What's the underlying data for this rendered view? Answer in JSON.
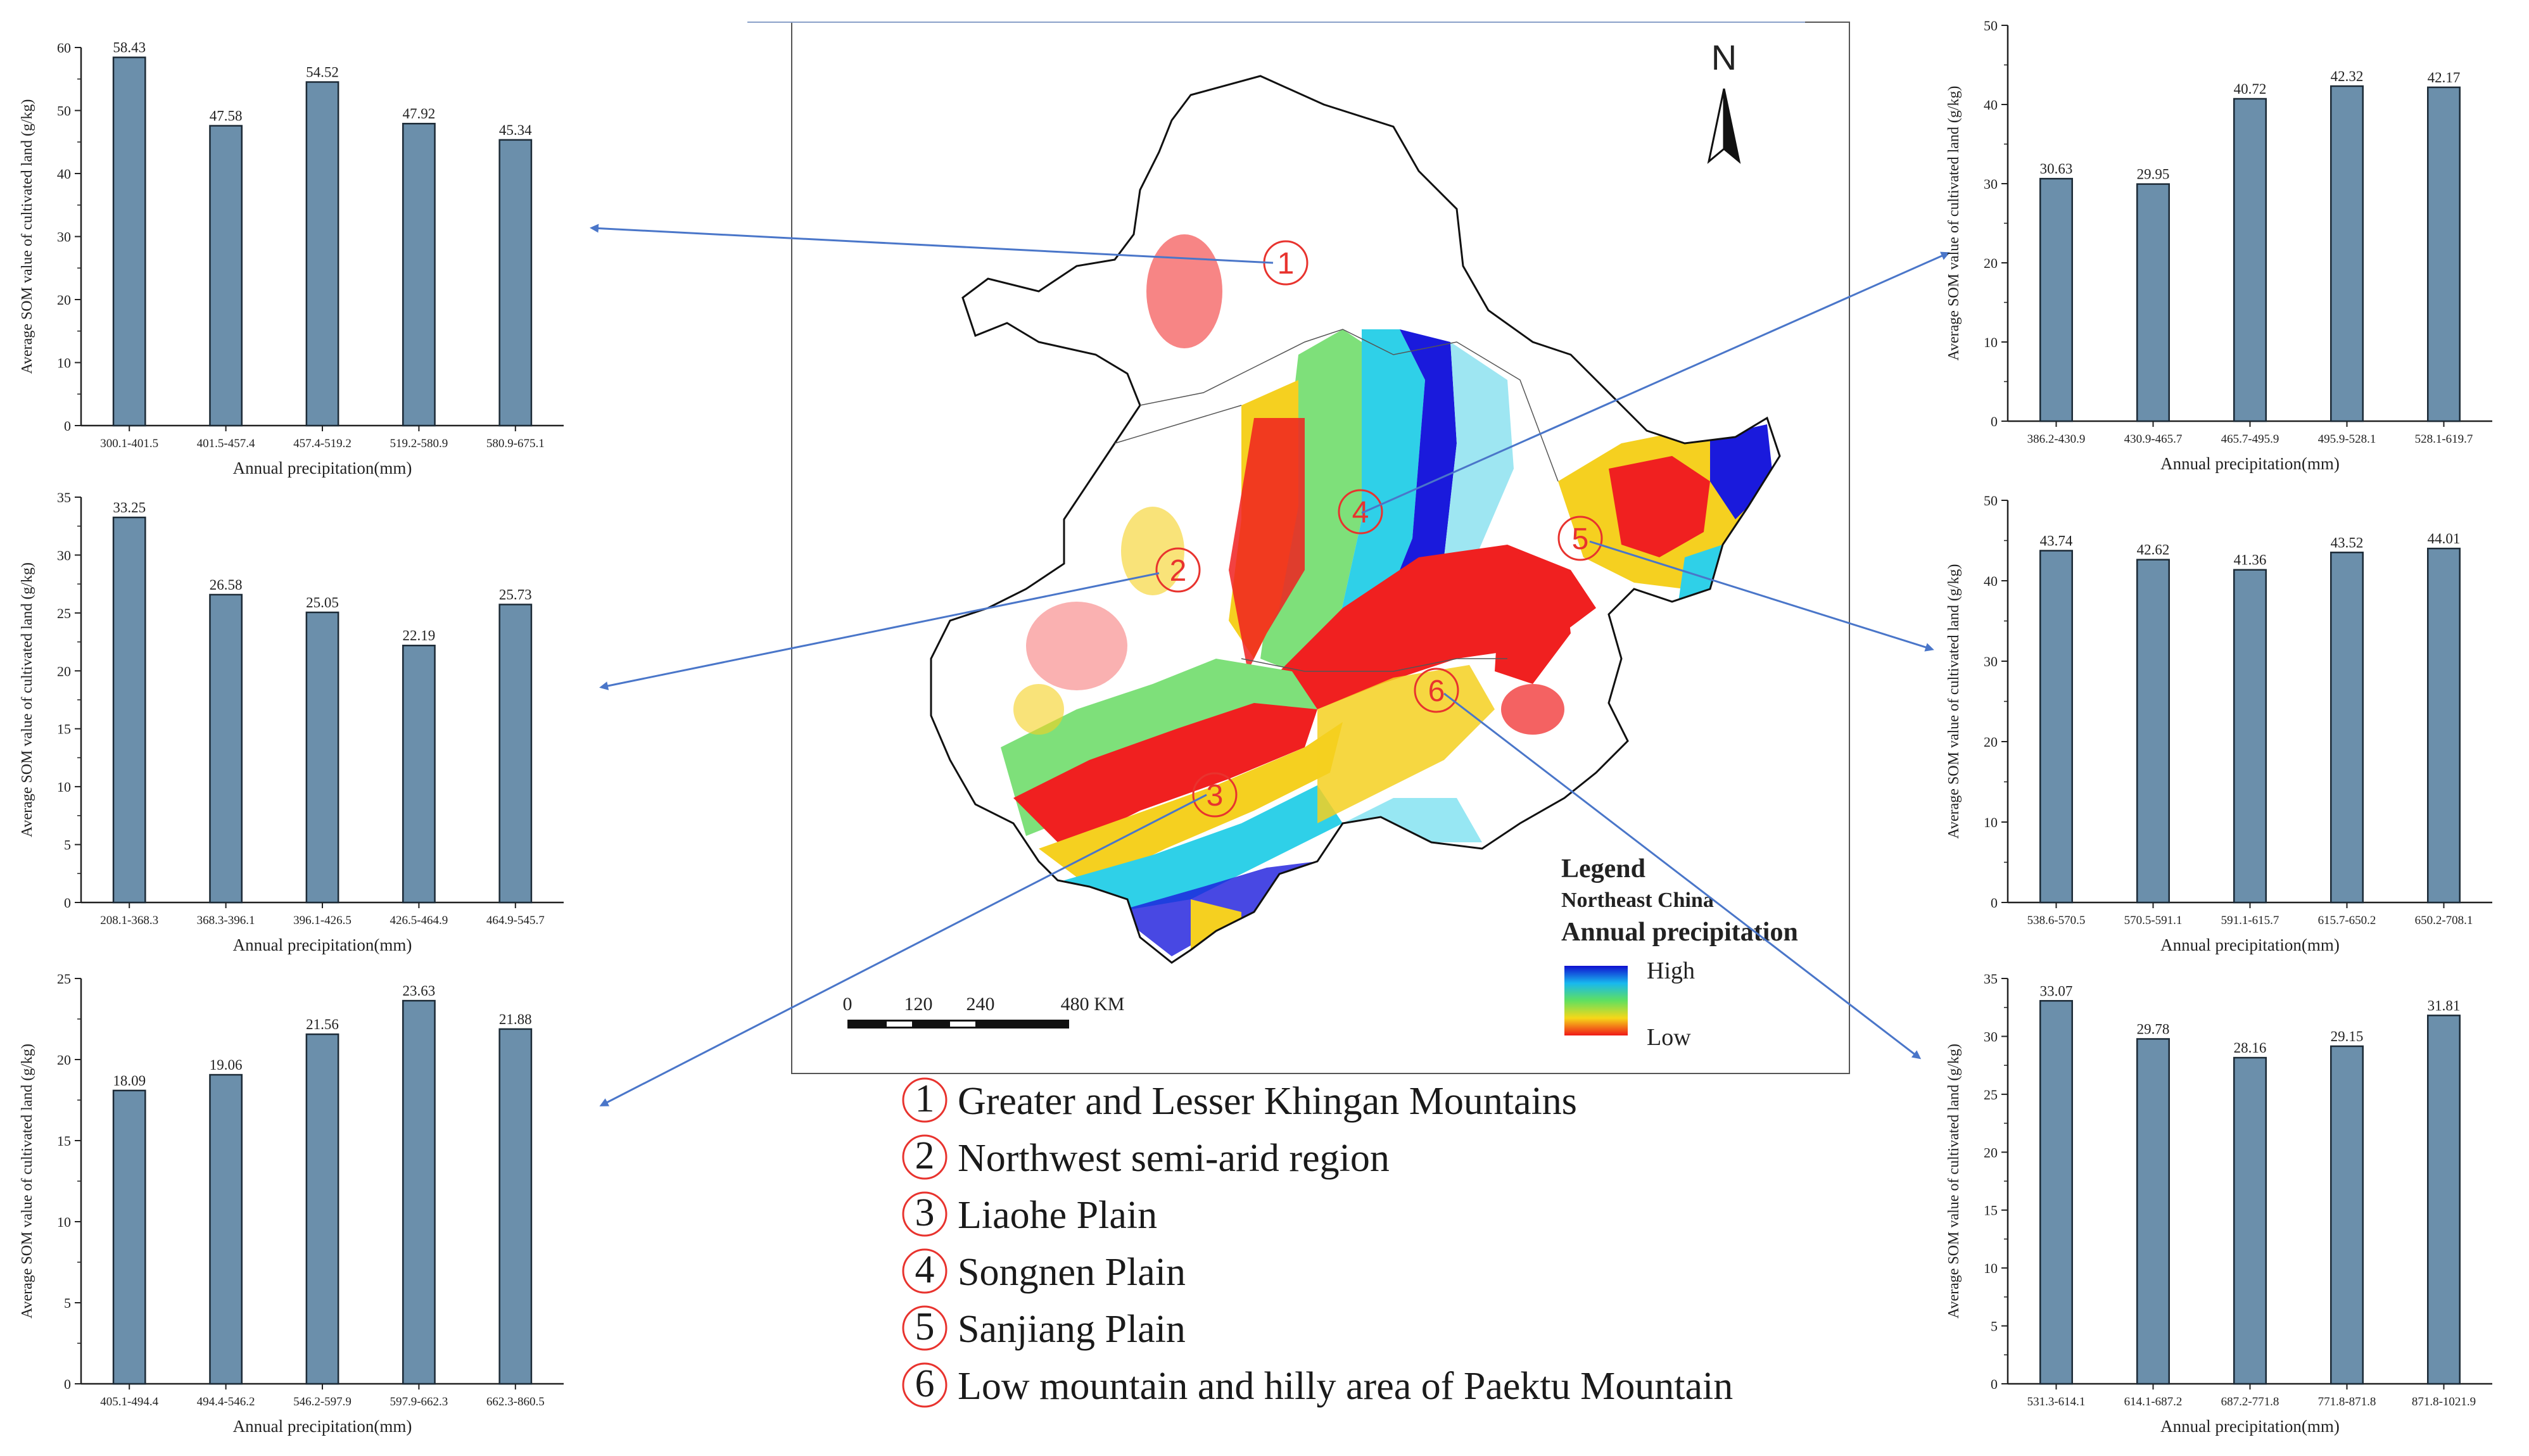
{
  "map": {
    "north_label": "N",
    "legend_title": "Legend",
    "legend_region": "Northeast China",
    "legend_variable": "Annual precipitation",
    "legend_high": "High",
    "legend_low": "Low",
    "scale_ticks": [
      "0",
      "120",
      "240",
      "480 KM"
    ],
    "region_markers": [
      "1",
      "2",
      "3",
      "4",
      "5",
      "6"
    ],
    "colors": {
      "high": "#1a1adc",
      "mid": "#2fd0e8",
      "green": "#7ee07a",
      "yellow": "#f5d020",
      "low": "#f02020",
      "boundary": "#111111",
      "arrow": "#4a76c9"
    }
  },
  "regions": [
    {
      "num": "1",
      "name": "Greater and Lesser Khingan Mountains"
    },
    {
      "num": "2",
      "name": "Northwest semi-arid region"
    },
    {
      "num": "3",
      "name": "Liaohe Plain"
    },
    {
      "num": "4",
      "name": "Songnen Plain"
    },
    {
      "num": "5",
      "name": "Sanjiang Plain"
    },
    {
      "num": "6",
      "name": "Low mountain and hilly area of Paektu Mountain"
    }
  ],
  "chart_data": [
    {
      "type": "bar",
      "region": "1",
      "ylabel": "Average SOM value of cultivated land (g/kg)",
      "xlabel": "Annual precipitation(mm)",
      "categories": [
        "300.1-401.5",
        "401.5-457.4",
        "457.4-519.2",
        "519.2-580.9",
        "580.9-675.1"
      ],
      "values": [
        58.43,
        47.58,
        54.52,
        47.92,
        45.34
      ],
      "value_labels": [
        "58.43",
        "47.58",
        "54.52",
        "47.92",
        "45.34"
      ],
      "ylim": [
        0,
        60
      ],
      "yticks": [
        "0",
        "10",
        "20",
        "30",
        "40",
        "50",
        "60"
      ],
      "bar_color": "#6b8fab"
    },
    {
      "type": "bar",
      "region": "2",
      "ylabel": "Average SOM value of cultivated land (g/kg)",
      "xlabel": "Annual precipitation(mm)",
      "categories": [
        "208.1-368.3",
        "368.3-396.1",
        "396.1-426.5",
        "426.5-464.9",
        "464.9-545.7"
      ],
      "values": [
        33.25,
        26.58,
        25.05,
        22.19,
        25.73
      ],
      "value_labels": [
        "33.25",
        "26.58",
        "25.05",
        "22.19",
        "25.73"
      ],
      "ylim": [
        0,
        35
      ],
      "yticks": [
        "0",
        "5",
        "10",
        "15",
        "20",
        "25",
        "30",
        "35"
      ],
      "bar_color": "#6b8fab"
    },
    {
      "type": "bar",
      "region": "3",
      "ylabel": "Average SOM value of cultivated land (g/kg)",
      "xlabel": "Annual precipitation(mm)",
      "categories": [
        "405.1-494.4",
        "494.4-546.2",
        "546.2-597.9",
        "597.9-662.3",
        "662.3-860.5"
      ],
      "values": [
        18.09,
        19.06,
        21.56,
        23.63,
        21.88
      ],
      "value_labels": [
        "18.09",
        "19.06",
        "21.56",
        "23.63",
        "21.88"
      ],
      "ylim": [
        0,
        25
      ],
      "yticks": [
        "0",
        "5",
        "10",
        "15",
        "20",
        "25"
      ],
      "bar_color": "#6b8fab"
    },
    {
      "type": "bar",
      "region": "4",
      "ylabel": "Average SOM value of cultivated land (g/kg)",
      "xlabel": "Annual precipitation(mm)",
      "categories": [
        "386.2-430.9",
        "430.9-465.7",
        "465.7-495.9",
        "495.9-528.1",
        "528.1-619.7"
      ],
      "values": [
        30.63,
        29.95,
        40.72,
        42.32,
        42.17
      ],
      "value_labels": [
        "30.63",
        "29.95",
        "40.72",
        "42.32",
        "42.17"
      ],
      "ylim": [
        0,
        50
      ],
      "yticks": [
        "0",
        "10",
        "20",
        "30",
        "40",
        "50"
      ],
      "bar_color": "#6b8fab"
    },
    {
      "type": "bar",
      "region": "5",
      "ylabel": "Average SOM value of cultivated land (g/kg)",
      "xlabel": "Annual precipitation(mm)",
      "categories": [
        "538.6-570.5",
        "570.5-591.1",
        "591.1-615.7",
        "615.7-650.2",
        "650.2-708.1"
      ],
      "values": [
        43.74,
        42.62,
        41.36,
        43.52,
        44.01
      ],
      "value_labels": [
        "43.74",
        "42.62",
        "41.36",
        "43.52",
        "44.01"
      ],
      "ylim": [
        0,
        50
      ],
      "yticks": [
        "0",
        "10",
        "20",
        "30",
        "40",
        "50"
      ],
      "bar_color": "#6b8fab"
    },
    {
      "type": "bar",
      "region": "6",
      "ylabel": "Average SOM value of cultivated land (g/kg)",
      "xlabel": "Annual precipitation(mm)",
      "categories": [
        "531.3-614.1",
        "614.1-687.2",
        "687.2-771.8",
        "771.8-871.8",
        "871.8-1021.9"
      ],
      "values": [
        33.07,
        29.78,
        28.16,
        29.15,
        31.81
      ],
      "value_labels": [
        "33.07",
        "29.78",
        "28.16",
        "29.15",
        "31.81"
      ],
      "ylim": [
        0,
        35
      ],
      "yticks": [
        "0",
        "5",
        "10",
        "15",
        "20",
        "25",
        "30",
        "35"
      ],
      "bar_color": "#6b8fab"
    }
  ]
}
